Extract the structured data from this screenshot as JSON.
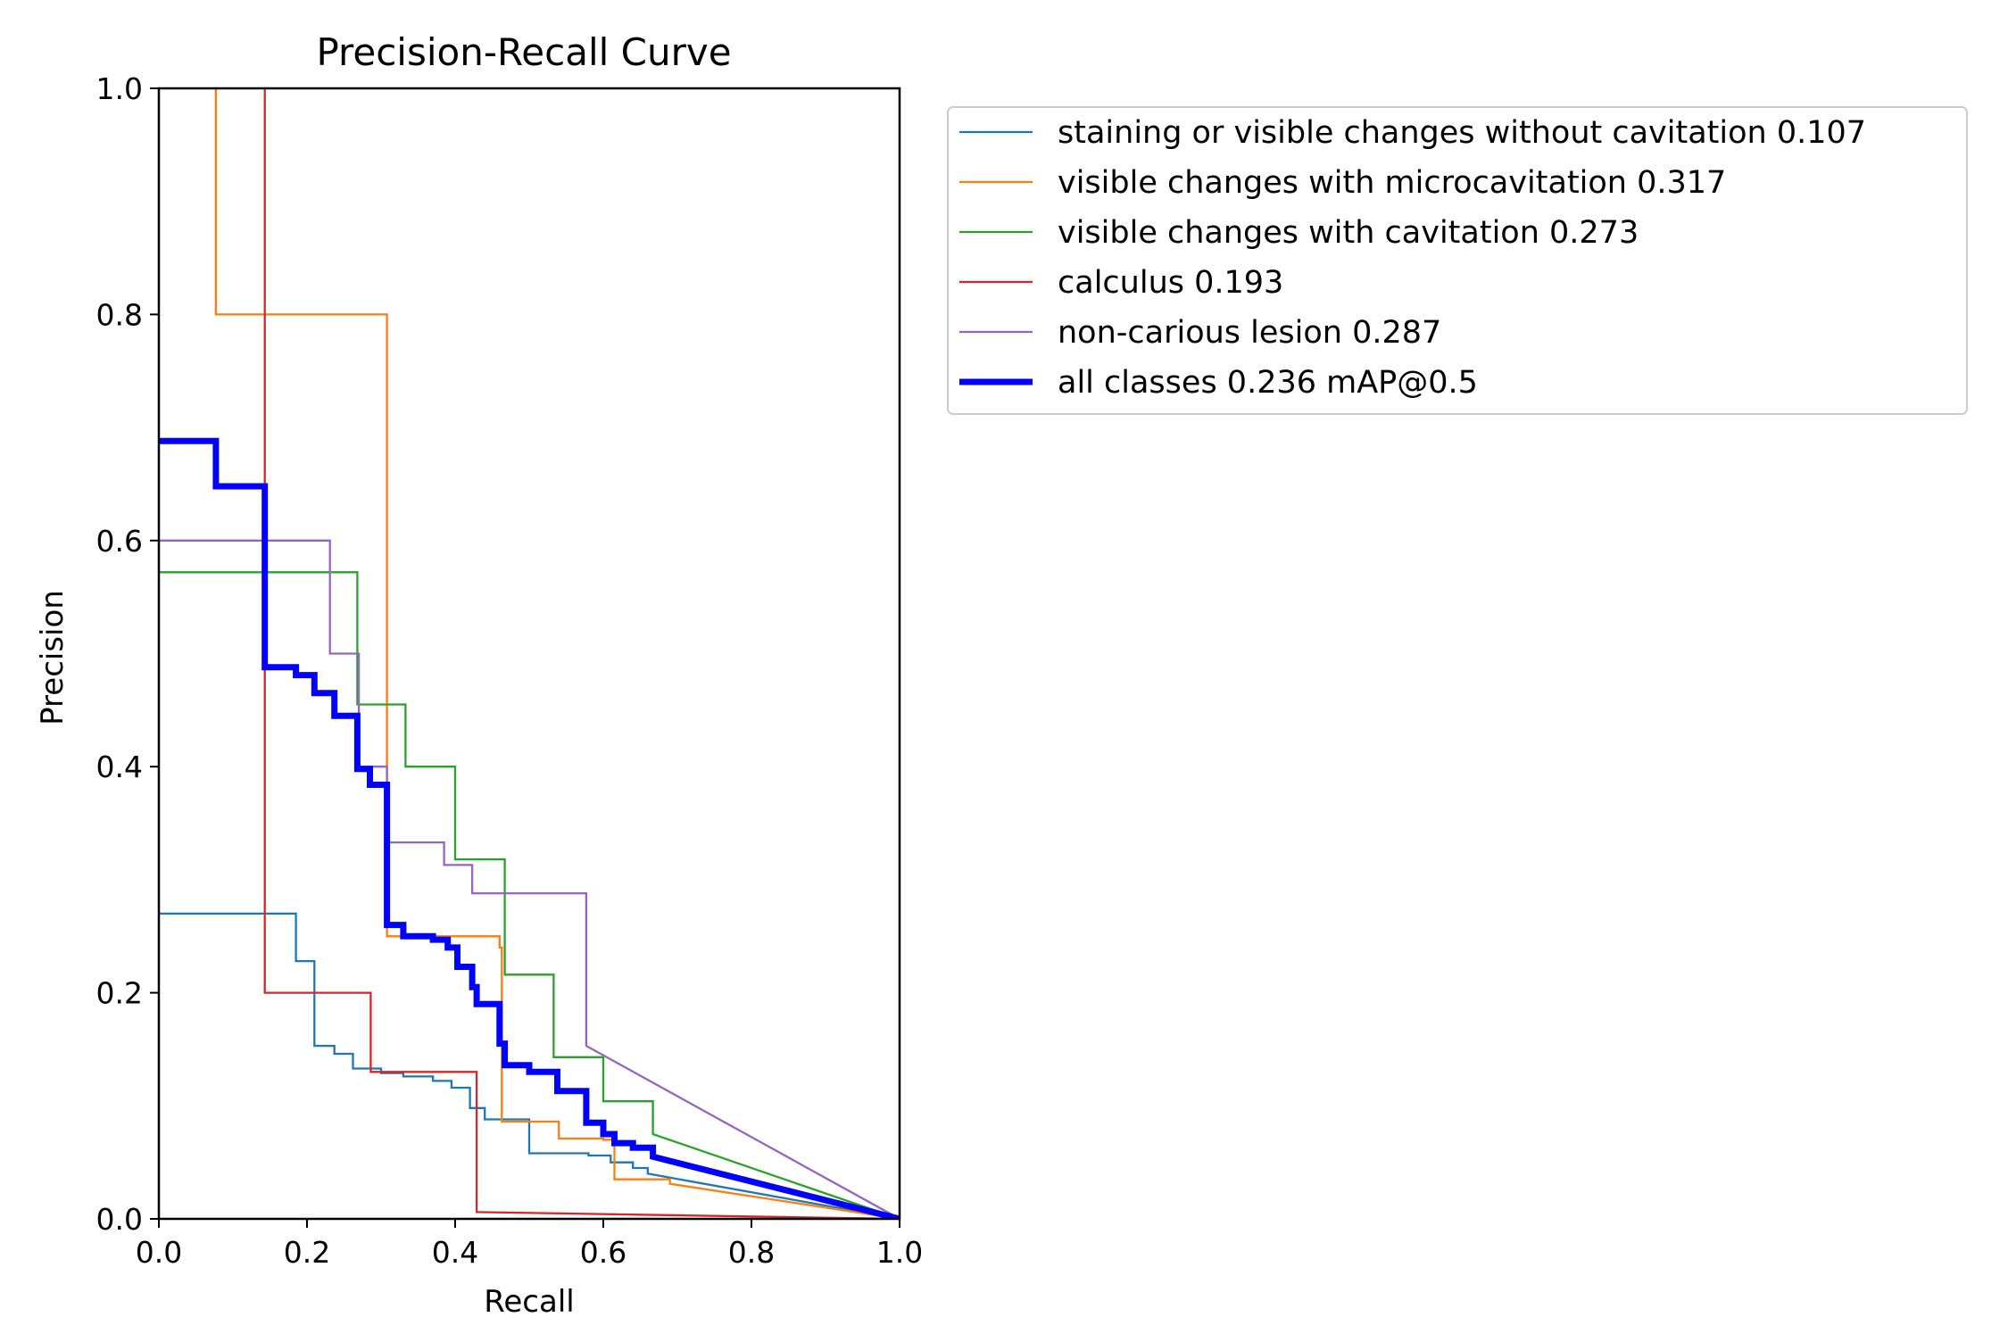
{
  "chart_data": {
    "type": "line",
    "title": "Precision-Recall Curve",
    "xlabel": "Recall",
    "ylabel": "Precision",
    "xlim": [
      0.0,
      1.0
    ],
    "ylim": [
      0.0,
      1.0
    ],
    "x_ticks": [
      "0.0",
      "0.2",
      "0.4",
      "0.6",
      "0.8",
      "1.0"
    ],
    "y_ticks": [
      "0.0",
      "0.2",
      "0.4",
      "0.6",
      "0.8",
      "1.0"
    ],
    "grid": false,
    "legend_position": "outside-upper-right",
    "series": [
      {
        "name": "staining or visible changes without cavitation 0.107",
        "color": "#1f77b4",
        "points": [
          [
            0.0,
            0.27
          ],
          [
            0.185,
            0.27
          ],
          [
            0.185,
            0.228
          ],
          [
            0.21,
            0.228
          ],
          [
            0.21,
            0.153
          ],
          [
            0.237,
            0.153
          ],
          [
            0.237,
            0.146
          ],
          [
            0.262,
            0.146
          ],
          [
            0.262,
            0.133
          ],
          [
            0.3,
            0.133
          ],
          [
            0.3,
            0.129
          ],
          [
            0.33,
            0.129
          ],
          [
            0.33,
            0.126
          ],
          [
            0.37,
            0.126
          ],
          [
            0.37,
            0.122
          ],
          [
            0.395,
            0.122
          ],
          [
            0.395,
            0.116
          ],
          [
            0.42,
            0.116
          ],
          [
            0.42,
            0.098
          ],
          [
            0.44,
            0.098
          ],
          [
            0.44,
            0.088
          ],
          [
            0.5,
            0.088
          ],
          [
            0.5,
            0.058
          ],
          [
            0.58,
            0.058
          ],
          [
            0.58,
            0.056
          ],
          [
            0.61,
            0.056
          ],
          [
            0.61,
            0.05
          ],
          [
            0.64,
            0.05
          ],
          [
            0.64,
            0.045
          ],
          [
            0.66,
            0.045
          ],
          [
            0.66,
            0.04
          ],
          [
            1.0,
            0.0
          ]
        ]
      },
      {
        "name": "visible changes with microcavitation 0.317",
        "color": "#ff7f0e",
        "points": [
          [
            0.077,
            1.0
          ],
          [
            0.077,
            0.8
          ],
          [
            0.308,
            0.8
          ],
          [
            0.308,
            0.25
          ],
          [
            0.46,
            0.25
          ],
          [
            0.46,
            0.24
          ],
          [
            0.463,
            0.24
          ],
          [
            0.463,
            0.086
          ],
          [
            0.54,
            0.086
          ],
          [
            0.54,
            0.071
          ],
          [
            0.6,
            0.071
          ],
          [
            0.6,
            0.07
          ],
          [
            0.615,
            0.07
          ],
          [
            0.615,
            0.035
          ],
          [
            0.69,
            0.035
          ],
          [
            0.69,
            0.031
          ],
          [
            1.0,
            0.0
          ]
        ]
      },
      {
        "name": "visible changes with cavitation 0.273",
        "color": "#2ca02c",
        "points": [
          [
            0.0,
            0.572
          ],
          [
            0.268,
            0.572
          ],
          [
            0.268,
            0.455
          ],
          [
            0.333,
            0.455
          ],
          [
            0.333,
            0.4
          ],
          [
            0.4,
            0.4
          ],
          [
            0.4,
            0.318
          ],
          [
            0.467,
            0.318
          ],
          [
            0.467,
            0.216
          ],
          [
            0.533,
            0.216
          ],
          [
            0.533,
            0.143
          ],
          [
            0.6,
            0.143
          ],
          [
            0.6,
            0.104
          ],
          [
            0.667,
            0.104
          ],
          [
            0.667,
            0.075
          ],
          [
            1.0,
            0.0
          ]
        ]
      },
      {
        "name": "calculus 0.193",
        "color": "#d62728",
        "points": [
          [
            0.143,
            1.0
          ],
          [
            0.143,
            0.2
          ],
          [
            0.286,
            0.2
          ],
          [
            0.286,
            0.13
          ],
          [
            0.429,
            0.13
          ],
          [
            0.429,
            0.006
          ],
          [
            1.0,
            0.0
          ]
        ]
      },
      {
        "name": "non-carious lesion 0.287",
        "color": "#9467bd",
        "points": [
          [
            0.0,
            0.6
          ],
          [
            0.231,
            0.6
          ],
          [
            0.231,
            0.5
          ],
          [
            0.27,
            0.5
          ],
          [
            0.27,
            0.4
          ],
          [
            0.308,
            0.4
          ],
          [
            0.308,
            0.333
          ],
          [
            0.385,
            0.333
          ],
          [
            0.385,
            0.313
          ],
          [
            0.423,
            0.313
          ],
          [
            0.423,
            0.288
          ],
          [
            0.577,
            0.288
          ],
          [
            0.577,
            0.153
          ],
          [
            1.0,
            0.0
          ]
        ]
      },
      {
        "name": "all classes 0.236 mAP@0.5",
        "color": "#0000ff",
        "bold": true,
        "points": [
          [
            0.0,
            0.688
          ],
          [
            0.077,
            0.688
          ],
          [
            0.077,
            0.648
          ],
          [
            0.143,
            0.648
          ],
          [
            0.143,
            0.488
          ],
          [
            0.185,
            0.488
          ],
          [
            0.185,
            0.481
          ],
          [
            0.21,
            0.481
          ],
          [
            0.21,
            0.465
          ],
          [
            0.237,
            0.465
          ],
          [
            0.237,
            0.445
          ],
          [
            0.268,
            0.445
          ],
          [
            0.268,
            0.398
          ],
          [
            0.285,
            0.398
          ],
          [
            0.285,
            0.384
          ],
          [
            0.308,
            0.384
          ],
          [
            0.308,
            0.26
          ],
          [
            0.33,
            0.26
          ],
          [
            0.33,
            0.25
          ],
          [
            0.37,
            0.25
          ],
          [
            0.37,
            0.247
          ],
          [
            0.39,
            0.247
          ],
          [
            0.39,
            0.24
          ],
          [
            0.403,
            0.24
          ],
          [
            0.403,
            0.223
          ],
          [
            0.423,
            0.223
          ],
          [
            0.423,
            0.205
          ],
          [
            0.429,
            0.205
          ],
          [
            0.429,
            0.19
          ],
          [
            0.46,
            0.19
          ],
          [
            0.46,
            0.155
          ],
          [
            0.467,
            0.155
          ],
          [
            0.467,
            0.136
          ],
          [
            0.5,
            0.136
          ],
          [
            0.5,
            0.13
          ],
          [
            0.538,
            0.13
          ],
          [
            0.538,
            0.113
          ],
          [
            0.577,
            0.113
          ],
          [
            0.577,
            0.085
          ],
          [
            0.6,
            0.085
          ],
          [
            0.6,
            0.075
          ],
          [
            0.615,
            0.075
          ],
          [
            0.615,
            0.067
          ],
          [
            0.64,
            0.067
          ],
          [
            0.64,
            0.063
          ],
          [
            0.667,
            0.063
          ],
          [
            0.667,
            0.055
          ],
          [
            1.0,
            0.0
          ]
        ]
      }
    ]
  }
}
